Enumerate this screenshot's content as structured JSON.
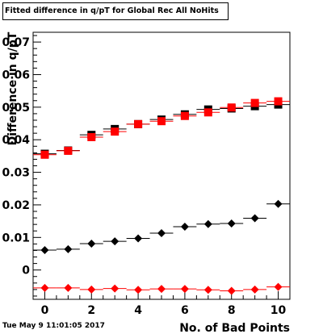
{
  "chart_data": {
    "type": "scatter",
    "title": "Fitted difference in q/pT for Global Rec All NoHits",
    "xlabel": "No. of Bad Points",
    "ylabel": "Difference in q/pT",
    "xlim": [
      -0.5,
      10.5
    ],
    "ylim": [
      -0.009,
      0.073
    ],
    "x_ticks": [
      "0",
      "2",
      "4",
      "6",
      "8",
      "10"
    ],
    "y_ticks": [
      "0",
      "0.01",
      "0.02",
      "0.03",
      "0.04",
      "0.05",
      "0.06",
      "0.07"
    ],
    "x": [
      0,
      1,
      2,
      3,
      4,
      5,
      6,
      7,
      8,
      9,
      10
    ],
    "series": [
      {
        "marker": "square",
        "color": "#000000",
        "values": [
          0.0357,
          0.0367,
          0.0415,
          0.0433,
          0.0448,
          0.0462,
          0.0478,
          0.0493,
          0.0496,
          0.0503,
          0.0508
        ]
      },
      {
        "marker": "square",
        "color": "#ff0000",
        "values": [
          0.0354,
          0.0366,
          0.0408,
          0.0425,
          0.0448,
          0.0457,
          0.0473,
          0.0484,
          0.0499,
          0.0513,
          0.0518
        ]
      },
      {
        "marker": "diamond",
        "color": "#000000",
        "values": [
          0.0061,
          0.0064,
          0.0081,
          0.0088,
          0.0097,
          0.0113,
          0.0133,
          0.0141,
          0.0143,
          0.0159,
          0.0203
        ]
      },
      {
        "marker": "diamond",
        "color": "#ff0000",
        "values": [
          -0.0055,
          -0.0055,
          -0.006,
          -0.0057,
          -0.0061,
          -0.0058,
          -0.0058,
          -0.0061,
          -0.0064,
          -0.006,
          -0.0052
        ]
      }
    ],
    "grid": false,
    "legend": "none"
  },
  "footer": {
    "timestamp": "Tue May  9 11:01:05 2017"
  }
}
